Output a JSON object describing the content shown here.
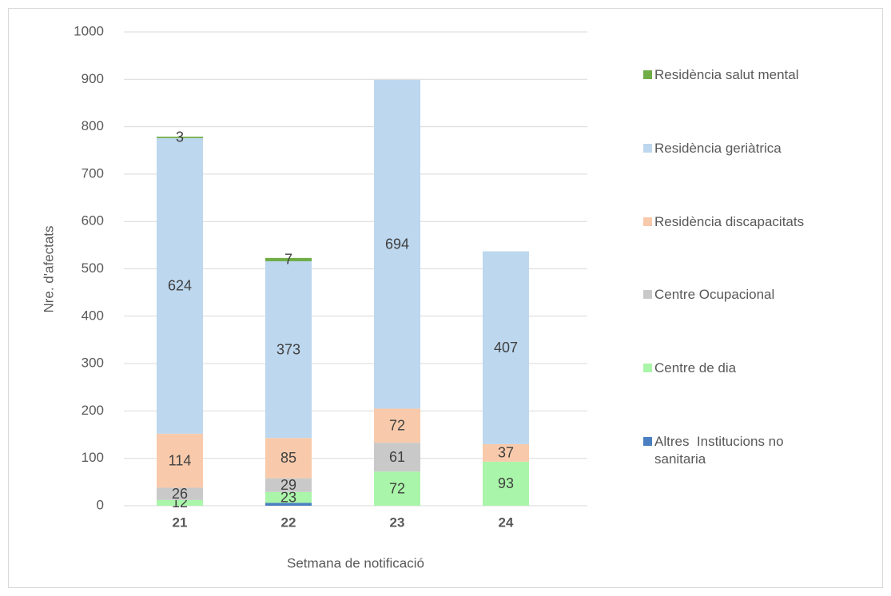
{
  "chart_data": {
    "type": "stacked_bar",
    "x_label": "Setmana de notificació",
    "y_label": "Nre. d'afectats",
    "categories": [
      "21",
      "22",
      "23",
      "24"
    ],
    "ylim": [
      0,
      1000
    ],
    "yticks": [
      0,
      100,
      200,
      300,
      400,
      500,
      600,
      700,
      800,
      900,
      1000
    ],
    "grid": true,
    "legend": "right",
    "series": [
      {
        "name": "Altres  Institucions no sanitaria",
        "color": "#4a7fc1",
        "values": [
          null,
          6,
          null,
          null
        ],
        "show_labels": false
      },
      {
        "name": "Centre de dia",
        "color": "#a9f5a9",
        "values": [
          12,
          23,
          72,
          93
        ]
      },
      {
        "name": "Centre Ocupacional",
        "color": "#c9c9c9",
        "values": [
          26,
          29,
          61,
          null
        ]
      },
      {
        "name": "Residència discapacitats",
        "color": "#f8caab",
        "values": [
          114,
          85,
          72,
          37
        ]
      },
      {
        "name": "Residència geriàtrica",
        "color": "#bdd7ee",
        "values": [
          624,
          373,
          694,
          407
        ]
      },
      {
        "name": "Residència salut mental",
        "color": "#70ad47",
        "values": [
          3,
          7,
          null,
          null
        ]
      }
    ]
  }
}
